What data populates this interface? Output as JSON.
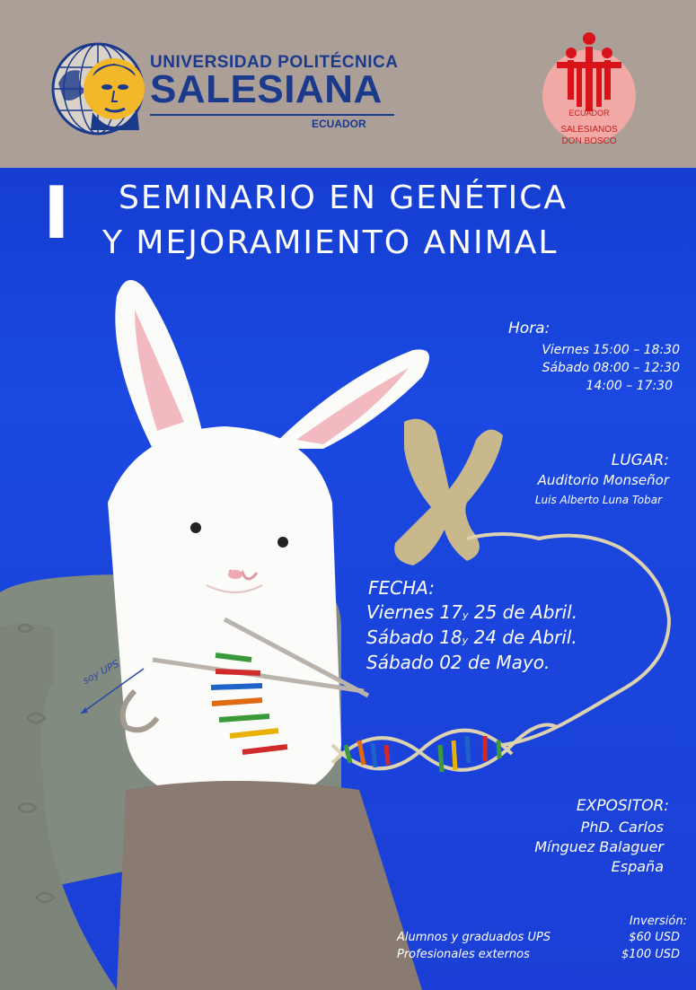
{
  "header": {
    "ups": {
      "top_line": "UNIVERSIDAD POLITÉCNICA",
      "name": "SALESIANA",
      "country": "ECUADOR"
    },
    "sdb": {
      "country": "ECUADOR",
      "name_line1": "SALESIANOS",
      "name_line2": "DON BOSCO"
    }
  },
  "title": {
    "edition": "I",
    "line1": "SEMINARIO EN GENÉTICA",
    "line2": "Y MEJORAMIENTO ANIMAL"
  },
  "hora": {
    "label": "Hora:",
    "lines": [
      "Viernes 15:00 – 18:30",
      "Sábado 08:00 – 12:30",
      "14:00 – 17:30"
    ]
  },
  "lugar": {
    "label": "LUGAR:",
    "line1": "Auditorio Monseñor",
    "line2": "Luis Alberto Luna Tobar"
  },
  "fecha": {
    "label": "FECHA:",
    "lines": [
      {
        "day": "Viernes 17",
        "y": "y",
        "rest": "25 de Abril."
      },
      {
        "day": "Sábado 18",
        "y": "y",
        "rest": "24 de Abril."
      },
      {
        "day": "Sábado 02 de Mayo.",
        "y": "",
        "rest": ""
      }
    ]
  },
  "expositor": {
    "label": "EXPOSITOR:",
    "lines": [
      "PhD. Carlos",
      "Mínguez Balaguer",
      "España"
    ]
  },
  "inversion": {
    "label": "Inversión:",
    "rows": [
      {
        "who": "Alumnos y graduados UPS",
        "price": "$60 USD"
      },
      {
        "who": "Profesionales externos",
        "price": "$100 USD"
      }
    ]
  },
  "illustration": {
    "tag": "soy UPS",
    "icons": [
      "globe-icon",
      "saint-portrait-icon",
      "chromosome-icon",
      "dna-helix-icon",
      "rabbit-icon"
    ]
  },
  "colors": {
    "header_bg": "#ab9f98",
    "poster_blue": "#1a48e0",
    "ups_blue": "#1b3a8c",
    "sdb_red": "#c21e1e"
  }
}
